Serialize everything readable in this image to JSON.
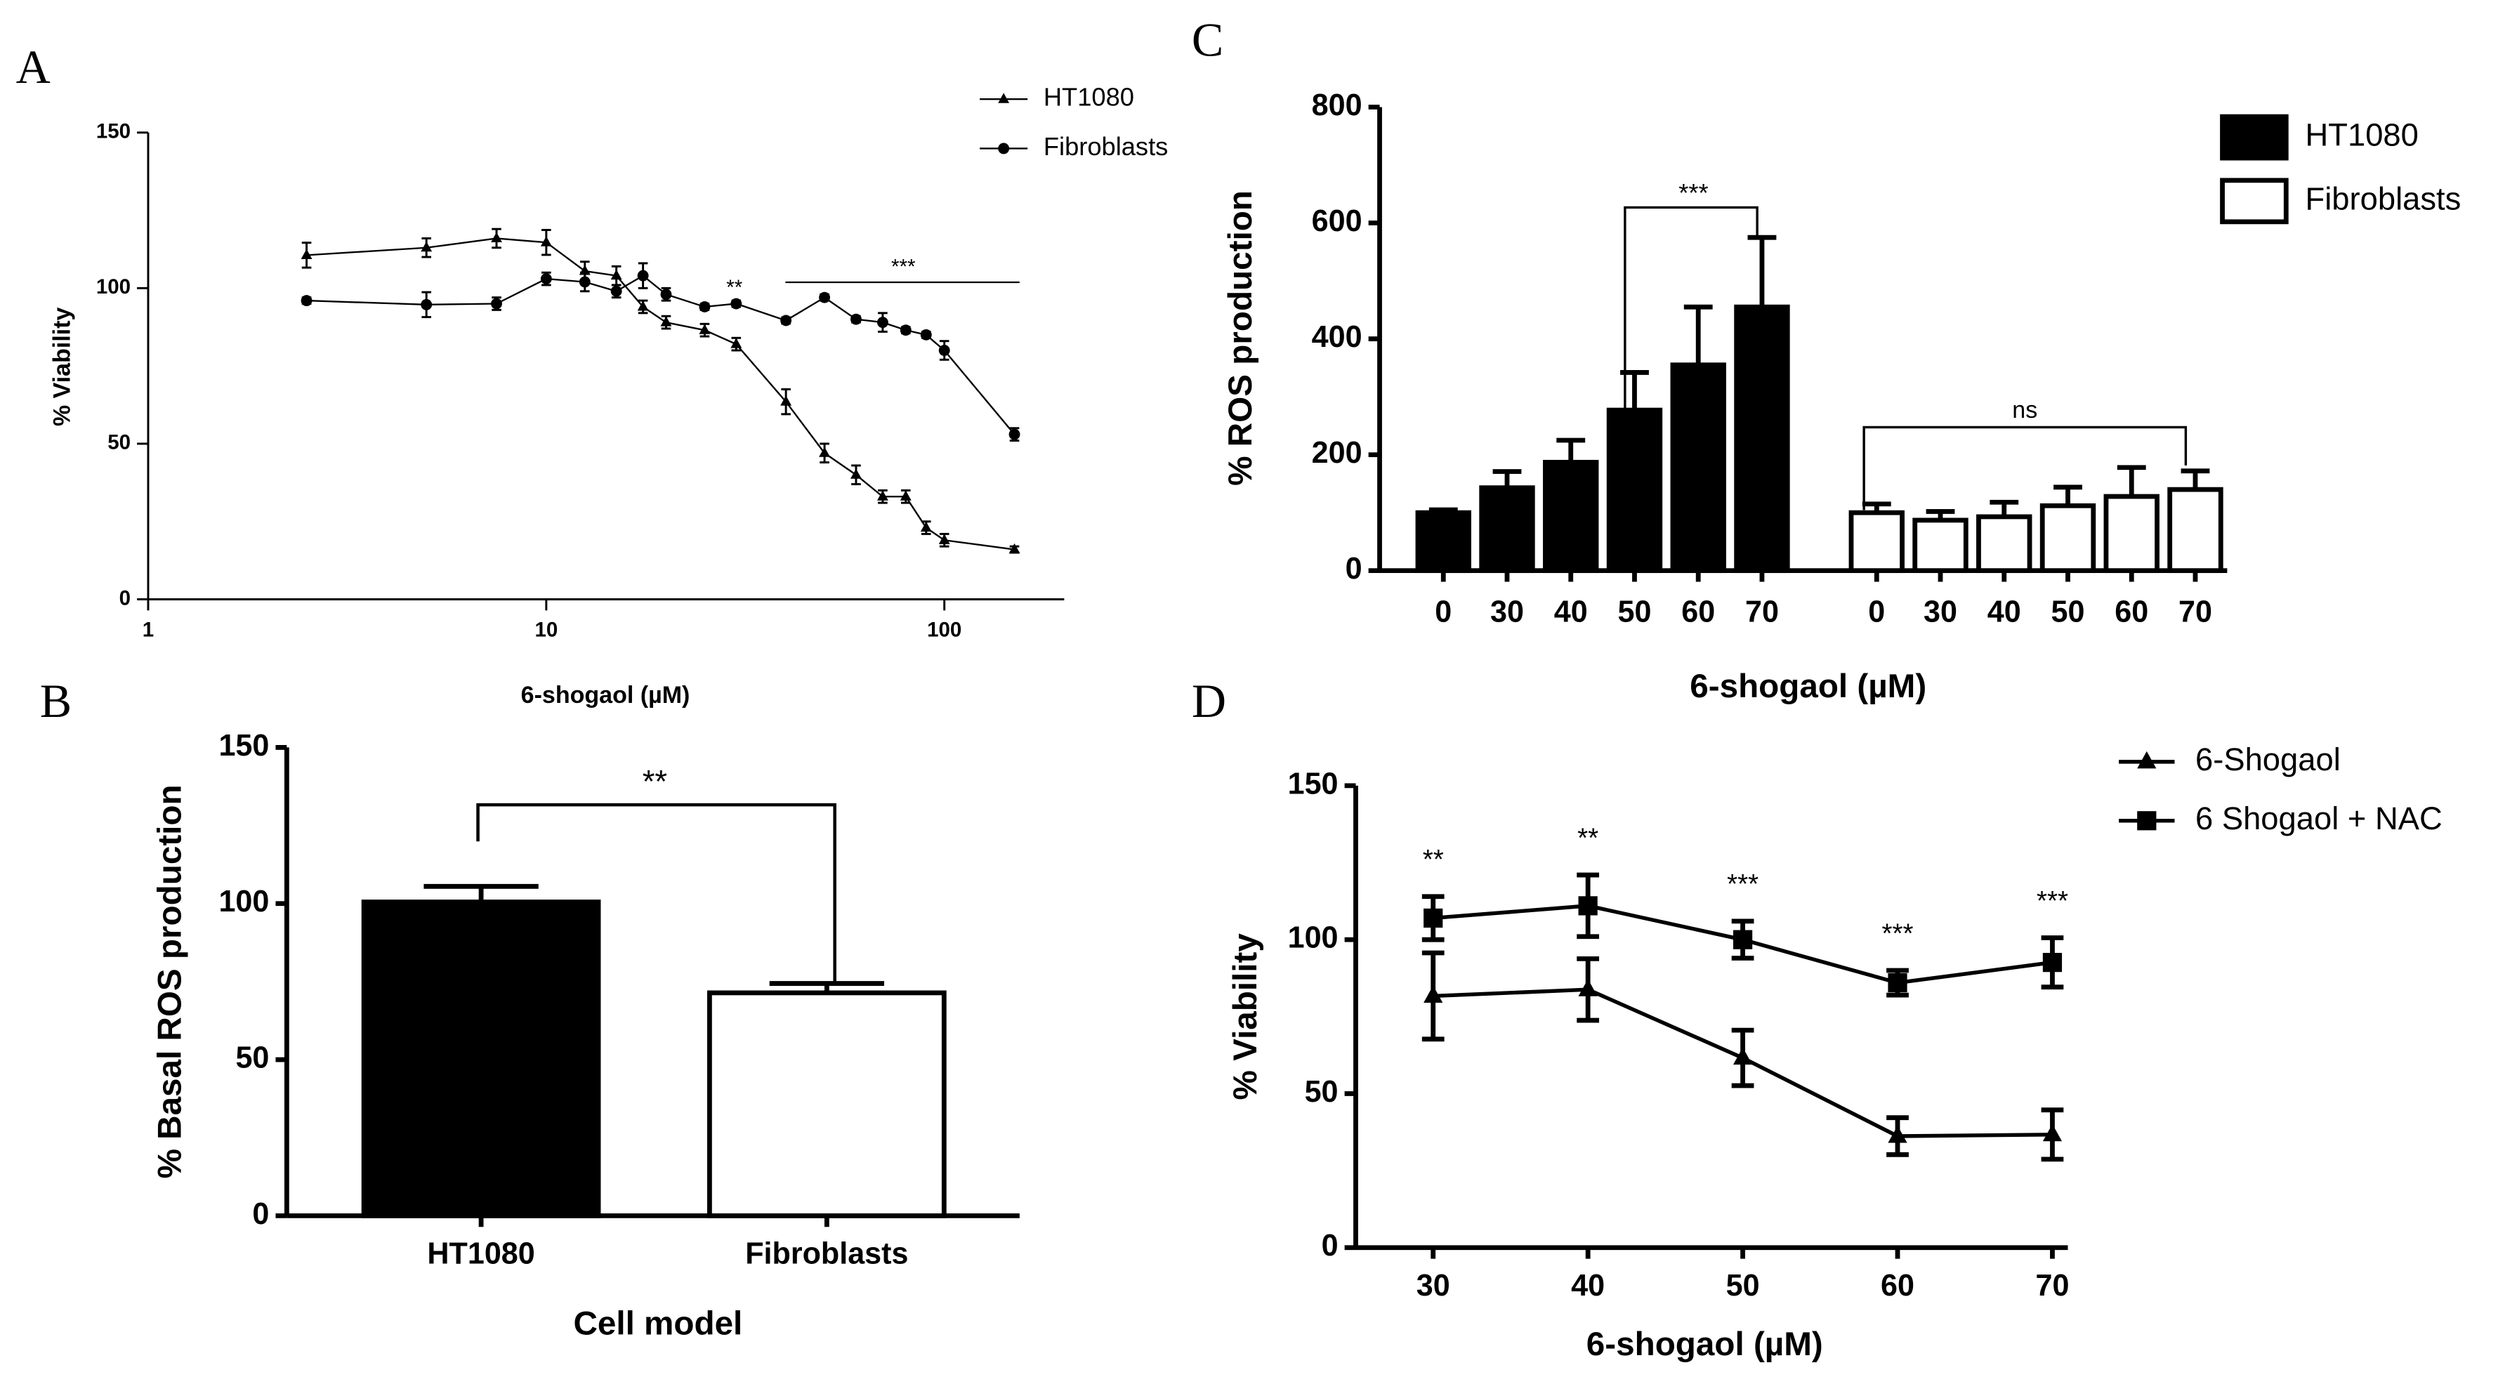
{
  "chart_data": [
    {
      "panel": "A",
      "type": "line",
      "xscale": "log",
      "xlim": [
        1,
        200
      ],
      "ylim": [
        0,
        150
      ],
      "xticks": [
        1,
        10,
        100
      ],
      "yticks": [
        0,
        50,
        100,
        150
      ],
      "xlabel": "6-shogaol (µM)",
      "ylabel": "% Viability",
      "x": [
        2.5,
        5,
        7.5,
        10,
        12.5,
        15,
        17.5,
        20,
        25,
        30,
        40,
        50,
        60,
        70,
        80,
        90,
        100,
        150
      ],
      "series": [
        {
          "name": "HT1080",
          "color": "#000000",
          "marker": "triangle",
          "values": [
            110.6,
            113,
            116,
            114.7,
            105.5,
            104,
            94,
            89,
            86.5,
            82,
            63.5,
            47,
            40,
            33,
            33,
            23,
            19,
            16
          ],
          "errors": [
            4,
            3,
            3,
            4,
            3,
            3,
            2,
            2,
            2,
            2,
            4,
            3,
            3,
            2,
            2,
            2,
            2,
            1
          ]
        },
        {
          "name": "Fibroblasts",
          "color": "#000000",
          "marker": "circle",
          "values": [
            96,
            94.7,
            95,
            103,
            102,
            99,
            104,
            98,
            94,
            95,
            89.6,
            97,
            90,
            89,
            86.5,
            85,
            80,
            53
          ],
          "errors": [
            1,
            4,
            2,
            2,
            3,
            2,
            4,
            2,
            1,
            1,
            1,
            1,
            1,
            3,
            1,
            1,
            3,
            2
          ]
        }
      ],
      "annotations": [
        "**",
        "***"
      ]
    },
    {
      "panel": "B",
      "type": "bar",
      "ylim": [
        0,
        150
      ],
      "yticks": [
        0,
        50,
        100,
        150
      ],
      "xlabel": "Cell model",
      "ylabel": "% Basal ROS production",
      "categories": [
        "HT1080",
        "Fibroblasts"
      ],
      "values": [
        100.5,
        71.4
      ],
      "errors": [
        5,
        3
      ],
      "colors": [
        "#000000",
        "#ffffff"
      ],
      "annotations": [
        "**"
      ]
    },
    {
      "panel": "C",
      "type": "bar",
      "ylim": [
        0,
        800
      ],
      "yticks": [
        0,
        200,
        400,
        600,
        800
      ],
      "xlabel": "6-shogaol (µM)",
      "ylabel": "% ROS production",
      "categories": [
        "0",
        "30",
        "40",
        "50",
        "60",
        "70"
      ],
      "series": [
        {
          "name": "HT1080",
          "color": "#000000",
          "values": [
            100,
            143,
            187,
            277,
            355,
            455
          ],
          "errors": [
            5,
            28,
            38,
            65,
            100,
            120
          ]
        },
        {
          "name": "Fibroblasts",
          "color": "#ffffff",
          "values": [
            100,
            87,
            93,
            112,
            128,
            140
          ],
          "errors": [
            15,
            15,
            25,
            32,
            50,
            32
          ]
        }
      ],
      "annotations": [
        "***",
        "ns"
      ]
    },
    {
      "panel": "D",
      "type": "line",
      "xlim": [
        25,
        71
      ],
      "ylim": [
        0,
        150
      ],
      "xticks": [
        30,
        40,
        50,
        60,
        70
      ],
      "yticks": [
        0,
        50,
        100,
        150
      ],
      "xlabel": "6-shogaol (µM)",
      "ylabel": "% Viability",
      "x": [
        30,
        40,
        50,
        60,
        70
      ],
      "series": [
        {
          "name": "6-Shogaol",
          "color": "#000000",
          "marker": "triangle",
          "values": [
            81.7,
            83.8,
            61.6,
            36.2,
            36.7
          ],
          "errors": [
            14,
            10,
            9,
            6,
            8
          ]
        },
        {
          "name": "6 Shogaol + NAC",
          "color": "#000000",
          "marker": "square",
          "values": [
            107,
            111,
            100,
            86,
            92.6
          ],
          "errors": [
            7,
            10,
            6,
            4,
            8
          ]
        }
      ],
      "annotations": [
        "**",
        "**",
        "***",
        "***",
        "***"
      ]
    }
  ]
}
